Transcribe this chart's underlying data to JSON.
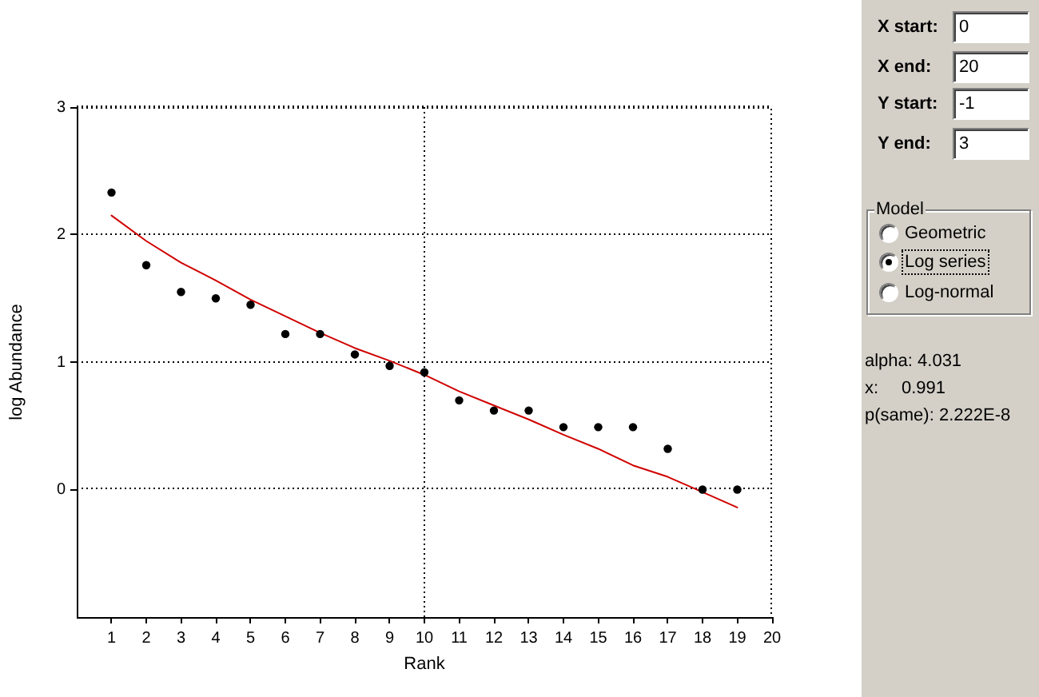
{
  "chart_data": [
    {
      "type": "scatter",
      "xlabel": "Rank",
      "ylabel": "log Abundance",
      "xlim": [
        0,
        20
      ],
      "xticks": [
        1,
        2,
        3,
        4,
        5,
        6,
        7,
        8,
        9,
        10,
        11,
        12,
        13,
        14,
        15,
        16,
        17,
        18,
        19,
        20
      ],
      "ylim": [
        -1,
        3
      ],
      "yticks": [
        0,
        1,
        2,
        3
      ],
      "grid": "y",
      "marker": "circle",
      "ref_lines": [
        {
          "axis": "x",
          "value": 10,
          "line_style": "dotted",
          "color": "#000000"
        }
      ],
      "series": [
        {
          "type": "scatter",
          "color": "#000000",
          "x": [
            1,
            2,
            3,
            4,
            5,
            6,
            7,
            8,
            9,
            10,
            11,
            12,
            13,
            14,
            15,
            16,
            17,
            18,
            19
          ],
          "values": [
            2.33,
            1.76,
            1.55,
            1.5,
            1.45,
            1.22,
            1.22,
            1.06,
            0.97,
            0.92,
            0.7,
            0.62,
            0.62,
            0.49,
            0.49,
            0.49,
            0.32,
            0,
            0
          ]
        },
        {
          "type": "line",
          "color": "#d00000",
          "marker": "none",
          "x": [
            1,
            2,
            3,
            4,
            5,
            6,
            7,
            8,
            9,
            10,
            11,
            12,
            13,
            14,
            15,
            16,
            17,
            18,
            19
          ],
          "values": [
            2.15,
            1.95,
            1.78,
            1.64,
            1.49,
            1.36,
            1.23,
            1.11,
            1.01,
            0.9,
            0.77,
            0.66,
            0.55,
            0.43,
            0.32,
            0.19,
            0.1,
            -0.02,
            -0.14
          ]
        }
      ]
    },
    {
      "type": "other",
      "annotations": [
        "X start:",
        "0",
        "X end:",
        "20",
        "Y start:",
        "-1",
        "Y end:",
        "3",
        "Model",
        "Geometric",
        "Log series",
        "Log-normal",
        "alpha: 4.031",
        "x:",
        "0.991",
        "p(same): 2.222E-8"
      ]
    }
  ]
}
